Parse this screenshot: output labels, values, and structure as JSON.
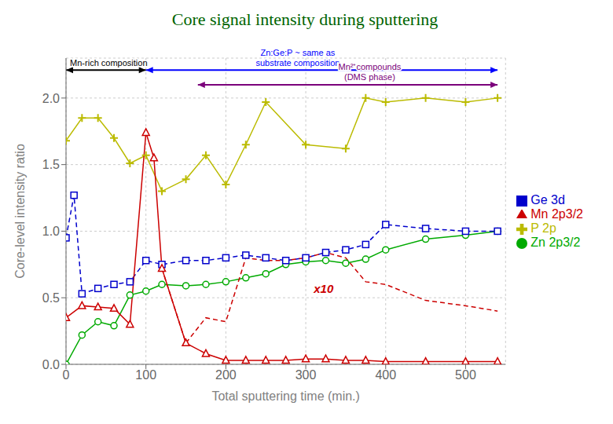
{
  "chart_data": {
    "type": "line",
    "title": "Core signal intensity during sputtering",
    "title_color": "#006400",
    "x_label": "Total sputtering time (min.)",
    "y_label": "Core-level intensity ratio",
    "xlim": [
      0,
      550
    ],
    "ylim": [
      0,
      2.3
    ],
    "xticks": [
      0,
      100,
      200,
      300,
      400,
      500
    ],
    "yticks": [
      {
        "value": 0,
        "label": "0.0"
      },
      0.5,
      {
        "value": 1.0,
        "label": "1.0"
      },
      1.5,
      {
        "value": 2.0,
        "label": "2.0"
      }
    ],
    "grid": true,
    "legend": "right",
    "series": [
      {
        "name": "Zn 2p3/2",
        "color": "#00aa00",
        "marker": "circle",
        "line_style": "solid",
        "x": [
          0,
          20,
          40,
          60,
          80,
          100,
          120,
          150,
          175,
          200,
          225,
          250,
          275,
          300,
          325,
          350,
          375,
          400,
          450,
          500,
          540
        ],
        "values": [
          0.0,
          0.22,
          0.32,
          0.29,
          0.52,
          0.55,
          0.6,
          0.59,
          0.6,
          0.62,
          0.65,
          0.68,
          0.75,
          0.77,
          0.78,
          0.76,
          0.79,
          0.86,
          0.94,
          0.97,
          1.0
        ]
      },
      {
        "name": "Ge 3d",
        "color": "#0000cc",
        "marker": "square",
        "line_style": "dashed",
        "x": [
          0,
          10,
          20,
          40,
          60,
          80,
          100,
          120,
          150,
          175,
          200,
          225,
          250,
          275,
          300,
          325,
          350,
          375,
          400,
          450,
          500,
          540
        ],
        "values": [
          0.95,
          1.27,
          0.53,
          0.57,
          0.6,
          0.62,
          0.78,
          0.75,
          0.78,
          0.78,
          0.8,
          0.82,
          0.8,
          0.78,
          0.8,
          0.84,
          0.86,
          0.9,
          1.05,
          1.02,
          1.0,
          1.0
        ]
      },
      {
        "name": "P 2p",
        "color": "#bbbb00",
        "marker": "plus",
        "line_style": "solid",
        "x": [
          0,
          20,
          40,
          60,
          80,
          100,
          120,
          150,
          175,
          200,
          225,
          250,
          300,
          350,
          375,
          400,
          450,
          500,
          540
        ],
        "values": [
          1.68,
          1.85,
          1.85,
          1.7,
          1.51,
          1.57,
          1.3,
          1.39,
          1.57,
          1.35,
          1.65,
          1.97,
          1.65,
          1.62,
          2.0,
          1.97,
          2.0,
          1.97,
          2.0
        ]
      },
      {
        "name": "Mn 2p3/2",
        "color": "#cc0000",
        "marker": "triangle",
        "line_style": "solid",
        "x": [
          0,
          20,
          40,
          60,
          80,
          100,
          110,
          120,
          150,
          175,
          200,
          225,
          250,
          275,
          300,
          325,
          350,
          375,
          400,
          450,
          500,
          540
        ],
        "values": [
          0.35,
          0.44,
          0.43,
          0.42,
          0.3,
          1.74,
          1.55,
          0.72,
          0.16,
          0.08,
          0.03,
          0.03,
          0.03,
          0.03,
          0.04,
          0.04,
          0.03,
          0.03,
          0.02,
          0.02,
          0.02,
          0.02
        ]
      },
      {
        "color": "#cc0000",
        "marker": "none",
        "line_style": "dashed",
        "x": [
          120,
          150,
          175,
          200,
          225,
          250,
          275,
          300,
          325,
          350,
          375,
          400,
          450,
          500,
          540
        ],
        "values": [
          0.72,
          0.16,
          0.35,
          0.32,
          0.8,
          0.78,
          0.78,
          0.8,
          0.84,
          0.8,
          0.62,
          0.6,
          0.48,
          0.44,
          0.4
        ]
      }
    ],
    "annotations": [
      {
        "text": "x10",
        "x": 310,
        "y": 0.52,
        "color": "#cc0000"
      },
      {
        "text": "Mn-rich composition",
        "x": 5,
        "y": 2.225,
        "color": "#000000"
      },
      {
        "text": "Zn:Ge:P ~ same as\nsubstrate composition",
        "x": 290,
        "y": 2.225,
        "color": "#0000ff"
      },
      {
        "text": "Mn²⁺compounds\n(DMS phase)",
        "x": 380,
        "y": 2.12,
        "color": "#7b007b"
      }
    ],
    "arrows": [
      {
        "x1": 0,
        "x2": 100,
        "y": 2.21,
        "color": "#000000"
      },
      {
        "x1": 100,
        "x2": 540,
        "y": 2.21,
        "color": "#0000ff"
      },
      {
        "x1": 165,
        "x2": 540,
        "y": 2.1,
        "color": "#7b007b"
      }
    ]
  }
}
